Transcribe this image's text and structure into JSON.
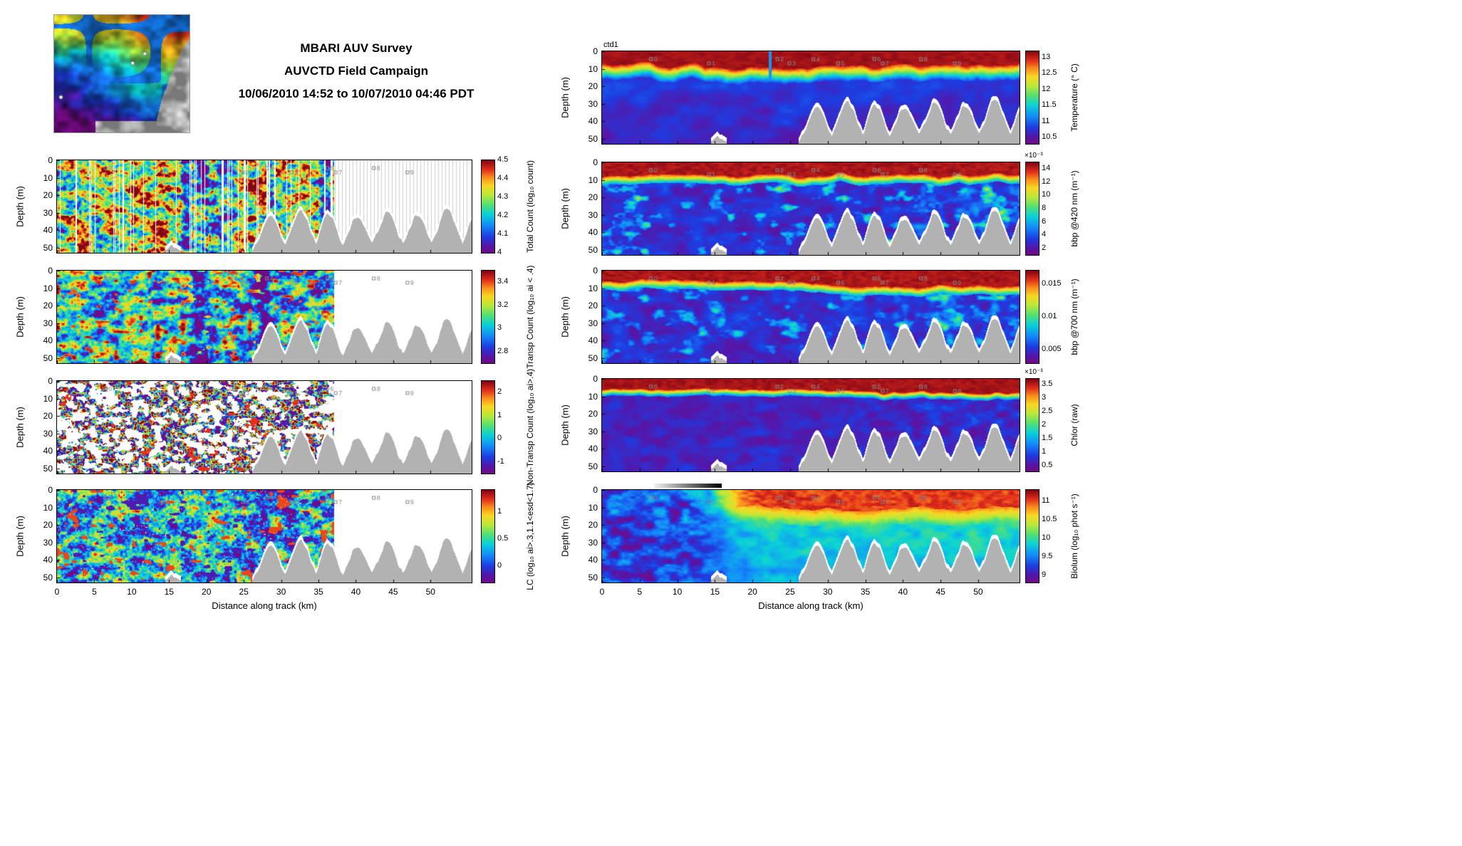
{
  "title": {
    "line1": "MBARI AUV Survey",
    "line2": "AUVCTD Field Campaign",
    "line3": "10/06/2010 14:52 to 10/07/2010 04:46 PDT"
  },
  "annotations": {
    "ctd1": "ctd1"
  },
  "axes": {
    "xlabel": "Distance along track (km)",
    "ylabel": "Depth (m)",
    "x_ticks": [
      0,
      5,
      10,
      15,
      20,
      25,
      30,
      35,
      40,
      45,
      50
    ],
    "y_ticks": [
      0,
      10,
      20,
      30,
      40,
      50
    ],
    "x_max": 55.5,
    "y_max": 53
  },
  "waypoints": [
    {
      "label": "0",
      "km": 6.5
    },
    {
      "label": "1",
      "km": 14.2
    },
    {
      "label": "2",
      "km": 23.3
    },
    {
      "label": "3",
      "km": 24.9
    },
    {
      "label": "4",
      "km": 28.1
    },
    {
      "label": "5",
      "km": 31.4
    },
    {
      "label": "6",
      "km": 36.2
    },
    {
      "label": "7",
      "km": 37.3
    },
    {
      "label": "8",
      "km": 42.4
    },
    {
      "label": "9",
      "km": 46.9
    }
  ],
  "colors": {
    "seafloor_gray": "#b2b2b2",
    "nodata_stripe_gray": "#cdcdcd",
    "waypoint_gray": "#8a8a8a"
  },
  "left_panels": [
    {
      "id": "total-count",
      "caption": "Total Count (log₁₀ count)",
      "colorbar": {
        "range": [
          4,
          4.5
        ],
        "ticks": [
          4,
          4.1,
          4.2,
          4.3,
          4.4,
          4.5
        ]
      },
      "field": {
        "kind": "speckleWarm",
        "seed": 11,
        "data_max_km": 37
      }
    },
    {
      "id": "transp-count",
      "caption": "Transp Count (log₁₀ ai < .4)",
      "colorbar": {
        "range": [
          2.7,
          3.5
        ],
        "ticks": [
          2.8,
          3,
          3.2,
          3.4
        ]
      },
      "field": {
        "kind": "speckleCool",
        "seed": 22,
        "data_max_km": 37
      }
    },
    {
      "id": "non-transp-count",
      "caption": "Non-Transp Count (log₁₀ ai>.4)",
      "colorbar": {
        "range": [
          -1.5,
          2.5
        ],
        "ticks": [
          -1,
          0,
          1,
          2
        ]
      },
      "field": {
        "kind": "sparseSpeckle",
        "seed": 33,
        "data_max_km": 37
      }
    },
    {
      "id": "lc",
      "caption": "LC (log₁₀ ai>.3,1.1<esd<1.7)",
      "colorbar": {
        "range": [
          -0.3,
          1.4
        ],
        "ticks": [
          0,
          0.5,
          1
        ]
      },
      "field": {
        "kind": "denseSpeckle",
        "seed": 44,
        "data_max_km": 37
      }
    }
  ],
  "right_panels": [
    {
      "id": "temperature",
      "caption": "Temperature (° C)",
      "colorbar": {
        "range": [
          10.3,
          13.2
        ],
        "ticks": [
          10.5,
          11,
          11.5,
          12,
          12.5,
          13
        ]
      },
      "field": {
        "kind": "temp",
        "seed": 55,
        "data_max_km": 56
      }
    },
    {
      "id": "bbp420",
      "caption": "bbp @420 nm (m⁻¹)",
      "colorbar": {
        "range": [
          1,
          15
        ],
        "ticks": [
          2,
          4,
          6,
          8,
          10,
          12,
          14
        ],
        "multiplier": "×10⁻³"
      },
      "field": {
        "kind": "bbp420",
        "seed": 66,
        "data_max_km": 56
      }
    },
    {
      "id": "bbp700",
      "caption": "bbp @700 nm (m⁻¹)",
      "colorbar": {
        "range": [
          0.003,
          0.017
        ],
        "ticks": [
          0.005,
          0.01,
          0.015
        ]
      },
      "field": {
        "kind": "bbp700",
        "seed": 77,
        "data_max_km": 56
      }
    },
    {
      "id": "chlor",
      "caption": "Chlor (raw)",
      "colorbar": {
        "range": [
          0.3,
          3.7
        ],
        "ticks": [
          0.5,
          1,
          1.5,
          2,
          2.5,
          3,
          3.5
        ],
        "multiplier": "×10⁻³"
      },
      "field": {
        "kind": "chlor",
        "seed": 88,
        "data_max_km": 56
      }
    },
    {
      "id": "biolum",
      "caption": "Biolum (log₁₀ phot s⁻¹)",
      "colorbar": {
        "range": [
          8.8,
          11.3
        ],
        "ticks": [
          9,
          9.5,
          10,
          10.5,
          11
        ]
      },
      "field": {
        "kind": "biolum",
        "seed": 99,
        "data_max_km": 56
      }
    }
  ],
  "chart_data": [
    {
      "type": "heatmap",
      "title": "Total Count (log₁₀ count)",
      "xlabel": "Distance along track (km)",
      "ylabel": "Depth (m)",
      "x_range": [
        0,
        55.5
      ],
      "y_range": [
        0,
        53
      ],
      "y_axis": "reversed",
      "data_extent_km": [
        0,
        37
      ],
      "colorbar_range": [
        4,
        4.5
      ],
      "colorbar_ticks": [
        4,
        4.1,
        4.2,
        4.3,
        4.4,
        4.5
      ],
      "description": "Dense red/orange particle-count section 0-37 km with vertical white data-gap stripes and cooler blue/purple vertical bands near 19-21 km; no data beyond 37 km (thin gray profile stems); gray seafloor ridges from ~27 km to edge."
    },
    {
      "type": "heatmap",
      "title": "Transp Count (log₁₀ ai < .4)",
      "xlabel": "Distance along track (km)",
      "ylabel": "Depth (m)",
      "x_range": [
        0,
        55.5
      ],
      "y_range": [
        0,
        53
      ],
      "y_axis": "reversed",
      "data_extent_km": [
        0,
        37
      ],
      "colorbar_range": [
        2.7,
        3.5
      ],
      "colorbar_ticks": [
        2.8,
        3,
        3.2,
        3.4
      ],
      "description": "Cyan/blue speckled field with scattered red blobs and a magenta low band near 18-20 km and 27-28 km."
    },
    {
      "type": "heatmap",
      "title": "Non-Transp Count (log₁₀ ai>.4)",
      "xlabel": "Distance along track (km)",
      "ylabel": "Depth (m)",
      "x_range": [
        0,
        55.5
      ],
      "y_range": [
        0,
        53
      ],
      "y_axis": "reversed",
      "data_extent_km": [
        0,
        37
      ],
      "colorbar_range": [
        -1.5,
        2.5
      ],
      "colorbar_ticks": [
        -1,
        0,
        1,
        2
      ],
      "description": "Sparse speckle on white background; mixed blue/purple/red patches 0-37 km."
    },
    {
      "type": "heatmap",
      "title": "LC (log₁₀ ai>.3,1.1<esd<1.7)",
      "xlabel": "Distance along track (km)",
      "ylabel": "Depth (m)",
      "x_range": [
        0,
        55.5
      ],
      "y_range": [
        0,
        53
      ],
      "y_axis": "reversed",
      "data_extent_km": [
        0,
        37
      ],
      "colorbar_range": [
        -0.3,
        1.4
      ],
      "colorbar_ticks": [
        0,
        0.5,
        1
      ],
      "description": "Dense blue/cyan speckle with red high blobs and purple low patches, 0-37 km."
    },
    {
      "type": "heatmap",
      "title": "Temperature (° C)",
      "annotation": "ctd1",
      "xlabel": "Distance along track (km)",
      "ylabel": "Depth (m)",
      "x_range": [
        0,
        55.5
      ],
      "y_range": [
        0,
        53
      ],
      "y_axis": "reversed",
      "data_extent_km": [
        0,
        55.5
      ],
      "colorbar_range": [
        10.3,
        13.2
      ],
      "colorbar_ticks": [
        10.5,
        11,
        11.5,
        12,
        12.5,
        13
      ],
      "description": "Warm ~13 C red surface layer 0-8 m, sharp rainbow thermocline, 10.5-11 C blue/purple water below ~15 m; narrow cold intrusion near 22 km; gray seafloor ridges on right half."
    },
    {
      "type": "heatmap",
      "title": "bbp @420 nm (m⁻¹)",
      "scale": "×10⁻³",
      "xlabel": "Distance along track (km)",
      "ylabel": "Depth (m)",
      "x_range": [
        0,
        55.5
      ],
      "y_range": [
        0,
        53
      ],
      "y_axis": "reversed",
      "data_extent_km": [
        0,
        55.5
      ],
      "colorbar_range": [
        0.001,
        0.015
      ],
      "colorbar_ticks": [
        2,
        4,
        6,
        8,
        10,
        12,
        14
      ],
      "description": "Dark-red high backscatter surface band, magenta/purple interior with blue-cyan patches increasing toward 28-50 km."
    },
    {
      "type": "heatmap",
      "title": "bbp @700 nm (m⁻¹)",
      "xlabel": "Distance along track (km)",
      "ylabel": "Depth (m)",
      "x_range": [
        0,
        55.5
      ],
      "y_range": [
        0,
        53
      ],
      "y_axis": "reversed",
      "data_extent_km": [
        0,
        55.5
      ],
      "colorbar_range": [
        0.003,
        0.017
      ],
      "colorbar_ticks": [
        0.005,
        0.01,
        0.015
      ],
      "description": "Similar to bbp420: thin red surface band (stronger east of ~25 km), magenta interior, blue/cyan patches on right half."
    },
    {
      "type": "heatmap",
      "title": "Chlor (raw)",
      "scale": "×10⁻³",
      "xlabel": "Distance along track (km)",
      "ylabel": "Depth (m)",
      "x_range": [
        0,
        55.5
      ],
      "y_range": [
        0,
        53
      ],
      "y_axis": "reversed",
      "data_extent_km": [
        0,
        55.5
      ],
      "colorbar_range": [
        0.3,
        3.7
      ],
      "colorbar_ticks": [
        0.5,
        1,
        1.5,
        2,
        2.5,
        3,
        3.5
      ],
      "description": "Thin red/orange chlorophyll maximum at surface, blue transition, mostly magenta/purple below 15 m."
    },
    {
      "type": "heatmap",
      "title": "Biolum (log₁₀ phot s⁻¹)",
      "xlabel": "Distance along track (km)",
      "ylabel": "Depth (m)",
      "x_range": [
        0,
        55.5
      ],
      "y_range": [
        0,
        53
      ],
      "y_axis": "reversed",
      "data_extent_km": [
        0,
        55.5
      ],
      "colorbar_range": [
        8.8,
        11.3
      ],
      "colorbar_ticks": [
        9,
        9.5,
        10,
        10.5,
        11
      ],
      "description": "Low purple/magenta bioluminescence west of ~12 km; east of ~20 km warm red/orange surface maximum over cyan mid-depths and blue deep water."
    }
  ],
  "inset_map": {
    "name": "Monterey Bay bathymetry inset",
    "style": "shaded-relief rainbow bathymetry with gray land mask and white mooring dots"
  }
}
